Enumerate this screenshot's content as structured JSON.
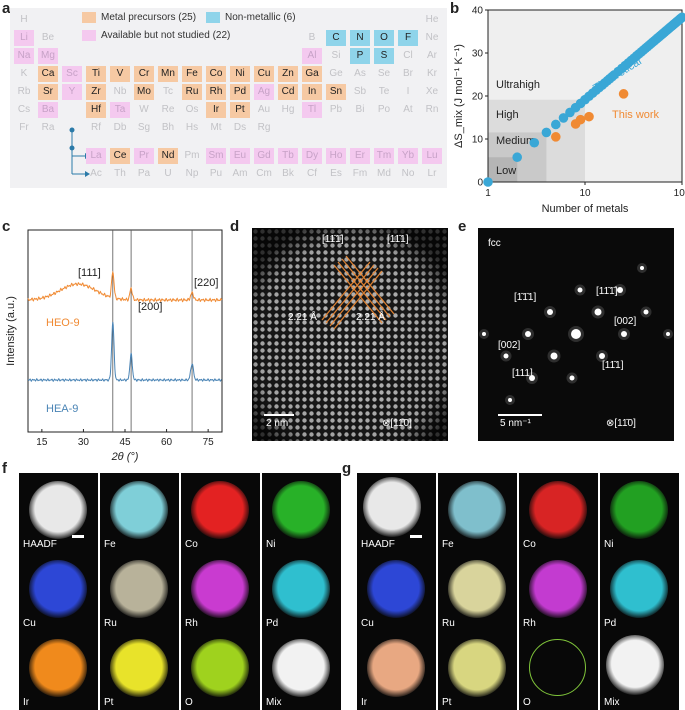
{
  "panels": {
    "a": "a",
    "b": "b",
    "c": "c",
    "d": "d",
    "e": "e",
    "f": "f",
    "g": "g"
  },
  "periodic_table": {
    "legend": {
      "metal": "Metal precursors (25)",
      "nonmetal": "Non-metallic (6)",
      "avail": "Available but not studied (22)"
    },
    "colors": {
      "metal": "#f6c9a3",
      "nonmetal": "#8fd4ea",
      "avail": "#f4c9ef",
      "bg": "#f1f1f3"
    },
    "rows": [
      [
        [
          "H",
          "plain",
          0
        ],
        [
          "He",
          "plain",
          17
        ]
      ],
      [
        [
          "Li",
          "avail",
          0
        ],
        [
          "Be",
          "plain",
          1
        ],
        [
          "B",
          "plain",
          12
        ],
        [
          "C",
          "nonmetal",
          13
        ],
        [
          "N",
          "nonmetal",
          14
        ],
        [
          "O",
          "nonmetal",
          15
        ],
        [
          "F",
          "nonmetal",
          16
        ],
        [
          "Ne",
          "plain",
          17
        ]
      ],
      [
        [
          "Na",
          "avail",
          0
        ],
        [
          "Mg",
          "avail",
          1
        ],
        [
          "Al",
          "avail",
          12
        ],
        [
          "Si",
          "plain",
          13
        ],
        [
          "P",
          "nonmetal",
          14
        ],
        [
          "S",
          "nonmetal",
          15
        ],
        [
          "Cl",
          "plain",
          16
        ],
        [
          "Ar",
          "plain",
          17
        ]
      ],
      [
        [
          "K",
          "plain",
          0
        ],
        [
          "Ca",
          "metal",
          1
        ],
        [
          "Sc",
          "avail",
          2
        ],
        [
          "Ti",
          "metal",
          3
        ],
        [
          "V",
          "metal",
          4
        ],
        [
          "Cr",
          "metal",
          5
        ],
        [
          "Mn",
          "metal",
          6
        ],
        [
          "Fe",
          "metal",
          7
        ],
        [
          "Co",
          "metal",
          8
        ],
        [
          "Ni",
          "metal",
          9
        ],
        [
          "Cu",
          "metal",
          10
        ],
        [
          "Zn",
          "metal",
          11
        ],
        [
          "Ga",
          "metal",
          12
        ],
        [
          "Ge",
          "plain",
          13
        ],
        [
          "As",
          "plain",
          14
        ],
        [
          "Se",
          "plain",
          15
        ],
        [
          "Br",
          "plain",
          16
        ],
        [
          "Kr",
          "plain",
          17
        ]
      ],
      [
        [
          "Rb",
          "plain",
          0
        ],
        [
          "Sr",
          "metal",
          1
        ],
        [
          "Y",
          "avail",
          2
        ],
        [
          "Zr",
          "metal",
          3
        ],
        [
          "Nb",
          "plain",
          4
        ],
        [
          "Mo",
          "metal",
          5
        ],
        [
          "Tc",
          "plain",
          6
        ],
        [
          "Ru",
          "metal",
          7
        ],
        [
          "Rh",
          "metal",
          8
        ],
        [
          "Pd",
          "metal",
          9
        ],
        [
          "Ag",
          "avail",
          10
        ],
        [
          "Cd",
          "metal",
          11
        ],
        [
          "In",
          "metal",
          12
        ],
        [
          "Sn",
          "metal",
          13
        ],
        [
          "Sb",
          "plain",
          14
        ],
        [
          "Te",
          "plain",
          15
        ],
        [
          "I",
          "plain",
          16
        ],
        [
          "Xe",
          "plain",
          17
        ]
      ],
      [
        [
          "Cs",
          "plain",
          0
        ],
        [
          "Ba",
          "avail",
          1
        ],
        [
          "Hf",
          "metal",
          3
        ],
        [
          "Ta",
          "avail",
          4
        ],
        [
          "W",
          "plain",
          5
        ],
        [
          "Re",
          "plain",
          6
        ],
        [
          "Os",
          "plain",
          7
        ],
        [
          "Ir",
          "metal",
          8
        ],
        [
          "Pt",
          "metal",
          9
        ],
        [
          "Au",
          "plain",
          10
        ],
        [
          "Hg",
          "plain",
          11
        ],
        [
          "Tl",
          "avail",
          12
        ],
        [
          "Pb",
          "plain",
          13
        ],
        [
          "Bi",
          "plain",
          14
        ],
        [
          "Po",
          "plain",
          15
        ],
        [
          "At",
          "plain",
          16
        ],
        [
          "Rn",
          "plain",
          17
        ]
      ],
      [
        [
          "Fr",
          "plain",
          0
        ],
        [
          "Ra",
          "plain",
          1
        ],
        [
          "Rf",
          "plain",
          3
        ],
        [
          "Db",
          "plain",
          4
        ],
        [
          "Sg",
          "plain",
          5
        ],
        [
          "Bh",
          "plain",
          6
        ],
        [
          "Hs",
          "plain",
          7
        ],
        [
          "Mt",
          "plain",
          8
        ],
        [
          "Ds",
          "plain",
          9
        ],
        [
          "Rg",
          "plain",
          10
        ]
      ],
      [
        [
          "La",
          "avail",
          3
        ],
        [
          "Ce",
          "metal",
          4
        ],
        [
          "Pr",
          "avail",
          5
        ],
        [
          "Nd",
          "metal",
          6
        ],
        [
          "Pm",
          "plain",
          7
        ],
        [
          "Sm",
          "avail",
          8
        ],
        [
          "Eu",
          "avail",
          9
        ],
        [
          "Gd",
          "avail",
          10
        ],
        [
          "Tb",
          "avail",
          11
        ],
        [
          "Dy",
          "avail",
          12
        ],
        [
          "Ho",
          "avail",
          13
        ],
        [
          "Er",
          "avail",
          14
        ],
        [
          "Tm",
          "avail",
          15
        ],
        [
          "Yb",
          "avail",
          16
        ],
        [
          "Lu",
          "avail",
          17
        ]
      ],
      [
        [
          "Ac",
          "plain",
          3
        ],
        [
          "Th",
          "plain",
          4
        ],
        [
          "Pa",
          "plain",
          5
        ],
        [
          "U",
          "plain",
          6
        ],
        [
          "Np",
          "plain",
          7
        ],
        [
          "Pu",
          "plain",
          8
        ],
        [
          "Am",
          "plain",
          9
        ],
        [
          "Cm",
          "plain",
          10
        ],
        [
          "Bk",
          "plain",
          11
        ],
        [
          "Cf",
          "plain",
          12
        ],
        [
          "Es",
          "plain",
          13
        ],
        [
          "Fm",
          "plain",
          14
        ],
        [
          "Md",
          "plain",
          15
        ],
        [
          "No",
          "plain",
          16
        ],
        [
          "Lr",
          "plain",
          17
        ]
      ]
    ]
  },
  "chart_data": [
    {
      "id": "b",
      "type": "scatter",
      "xlabel": "Number of metals",
      "ylabel": "ΔS_mix (J mol⁻¹ K⁻¹)",
      "xscale": "log",
      "xlim": [
        1,
        100
      ],
      "ylim": [
        0,
        40
      ],
      "xticks": [
        "1",
        "10",
        "100"
      ],
      "yticks": [
        "0",
        "10",
        "20",
        "30",
        "40"
      ],
      "regions": [
        {
          "label": "Low",
          "xmax": 2,
          "ymax": 5.76
        },
        {
          "label": "Medium",
          "xmax": 4,
          "ymax": 11.53
        },
        {
          "label": "High",
          "xmax": 10,
          "ymax": 19.14
        },
        {
          "label": "Ultrahigh",
          "xmax": 100,
          "ymax": 40
        }
      ],
      "series": [
        {
          "name": "Theoretical",
          "color": "#3aa7d6",
          "x": [
            1,
            2,
            3,
            4,
            5,
            6,
            7,
            8,
            9,
            10,
            11,
            12,
            13,
            14,
            15,
            16,
            17,
            18,
            19,
            20,
            22,
            24,
            26,
            28,
            30,
            32,
            34,
            36,
            38,
            40,
            42,
            44,
            46,
            48,
            50,
            52,
            54,
            56,
            58,
            60,
            62,
            64,
            66,
            68,
            70,
            72,
            74,
            76,
            78,
            80,
            82,
            84,
            86,
            88,
            90,
            92,
            94,
            96,
            98,
            100
          ],
          "y": [
            0,
            5.76,
            9.13,
            11.53,
            13.38,
            14.9,
            16.18,
            17.29,
            18.27,
            19.14,
            19.94,
            20.66,
            21.33,
            21.94,
            22.51,
            23.05,
            23.55,
            24.03,
            24.48,
            24.91,
            25.7,
            26.42,
            27.09,
            27.7,
            28.28,
            28.81,
            29.32,
            29.79,
            30.24,
            30.67,
            31.08,
            31.46,
            31.83,
            32.19,
            32.53,
            32.85,
            33.17,
            33.47,
            33.76,
            34.04,
            34.31,
            34.58,
            34.83,
            35.08,
            35.32,
            35.56,
            35.79,
            36.01,
            36.22,
            36.43,
            36.64,
            36.84,
            37.03,
            37.22,
            37.41,
            37.59,
            37.77,
            37.95,
            38.12,
            38.29
          ]
        },
        {
          "name": "This work",
          "color": "#f08a33",
          "x": [
            5,
            8,
            9,
            11,
            25
          ],
          "y": [
            10.5,
            13.5,
            14.5,
            15.2,
            20.5
          ]
        }
      ]
    },
    {
      "id": "c",
      "type": "line",
      "xlabel": "2θ (°)",
      "ylabel": "Intensity (a.u.)",
      "xlim": [
        10,
        80
      ],
      "xticks": [
        "15",
        "30",
        "45",
        "60",
        "75"
      ],
      "annotations": [
        "[111]",
        "[200]",
        "[220]"
      ],
      "reference_lines": [
        40.6,
        47.2,
        69.2
      ],
      "series": [
        {
          "name": "HEO-9",
          "color": "#f08a33"
        },
        {
          "name": "HEA-9",
          "color": "#4a84b5"
        }
      ]
    }
  ],
  "tem": {
    "d": {
      "dir1": "[11̄1̄]",
      "dir2": "[11̄1]",
      "d1": "2.21 Å",
      "d2": "2.21 Å",
      "scale": "2 nm",
      "zone": "⊗[11̄0]"
    },
    "e": {
      "phase": "fcc",
      "spots": [
        "[1̄1̄1]",
        "[11̄1̄]",
        "[002]",
        "[002]",
        "[111]",
        "[11̄1]"
      ],
      "scale": "5 nm⁻¹",
      "zone": "⊗[11̄0]"
    }
  },
  "maps_f": [
    {
      "label": "HAADF",
      "color": "#e8e8e8"
    },
    {
      "label": "Fe",
      "color": "#7fcfd8"
    },
    {
      "label": "Co",
      "color": "#e32222"
    },
    {
      "label": "Ni",
      "color": "#28b128"
    },
    {
      "label": "Cu",
      "color": "#2d47d6"
    },
    {
      "label": "Ru",
      "color": "#b8b29a"
    },
    {
      "label": "Rh",
      "color": "#c93bd0"
    },
    {
      "label": "Pd",
      "color": "#2fbfcf"
    },
    {
      "label": "Ir",
      "color": "#f08a1c"
    },
    {
      "label": "Pt",
      "color": "#e8e32a"
    },
    {
      "label": "O",
      "color": "#9fd21e"
    },
    {
      "label": "Mix",
      "color": "#f2f2f2"
    }
  ],
  "maps_g": [
    {
      "label": "HAADF",
      "color": "#e8e8e8"
    },
    {
      "label": "Fe",
      "color": "#7fbfcc"
    },
    {
      "label": "Co",
      "color": "#d82424"
    },
    {
      "label": "Ni",
      "color": "#22a022"
    },
    {
      "label": "Cu",
      "color": "#2d47d6"
    },
    {
      "label": "Ru",
      "color": "#d9d49c"
    },
    {
      "label": "Rh",
      "color": "#c33bd0"
    },
    {
      "label": "Pd",
      "color": "#2fbfcf"
    },
    {
      "label": "Ir",
      "color": "#e8a882"
    },
    {
      "label": "Pt",
      "color": "#d8d680"
    },
    {
      "label": "O",
      "color": "#1a2a10"
    },
    {
      "label": "Mix",
      "color": "#f2f2f2"
    }
  ]
}
